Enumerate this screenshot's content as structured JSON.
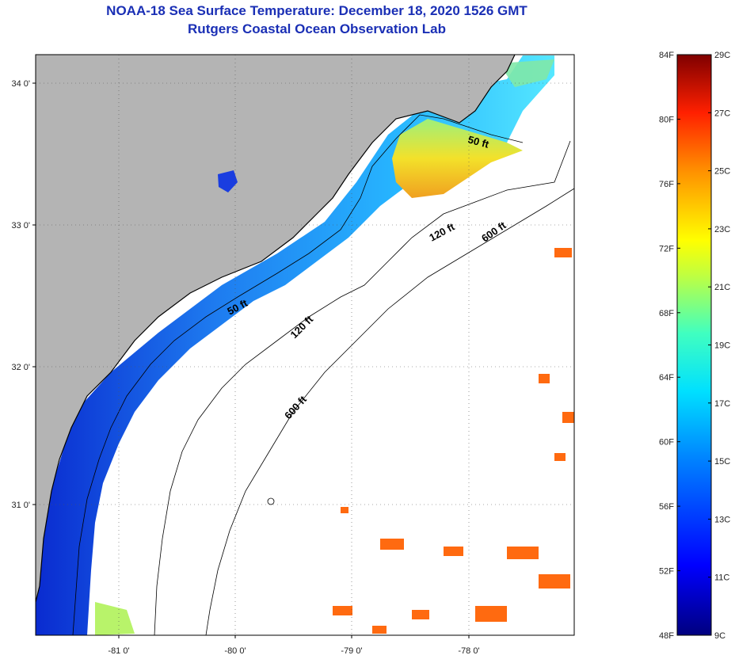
{
  "header": {
    "title": "NOAA-18 Sea Surface Temperature:  December 18, 2020 1526 GMT",
    "subtitle": "Rutgers Coastal Ocean Observation Lab"
  },
  "axes": {
    "lon_ticks": [
      "-81 0'",
      "-80 0'",
      "-79 0'",
      "-78 0'"
    ],
    "lat_ticks": [
      "34 0'",
      "33 0'",
      "32 0'",
      "31 0'"
    ]
  },
  "contours": [
    "50 ft",
    "50 ft",
    "120 ft",
    "120 ft",
    "600 ft",
    "600 ft"
  ],
  "colorbar": {
    "f_labels": [
      "84F",
      "80F",
      "76F",
      "72F",
      "68F",
      "64F",
      "60F",
      "56F",
      "52F",
      "48F"
    ],
    "c_labels": [
      "29C",
      "27C",
      "25C",
      "23C",
      "21C",
      "19C",
      "17C",
      "15C",
      "13C",
      "11C",
      "9C"
    ]
  },
  "colors": {
    "land": "#b4b4b4",
    "title": "#1a2fb5"
  }
}
